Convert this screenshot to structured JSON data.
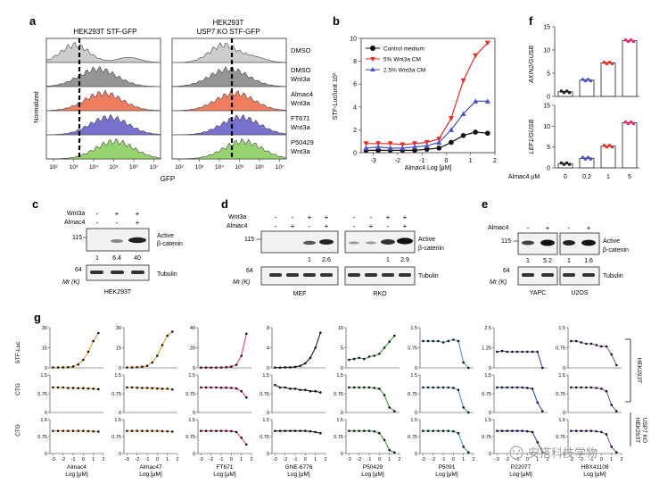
{
  "panel_letters": {
    "a": "a",
    "b": "b",
    "c": "c",
    "d": "d",
    "e": "e",
    "f": "f",
    "g": "g"
  },
  "panel_a": {
    "left_title": "HEK293T STF-GFP",
    "right_title_1": "HEK293T",
    "right_title_2": "USP7 KO STF-GFP",
    "ylabel": "Normalized",
    "xlabel": "GFP",
    "xticks": [
      "10²",
      "10³",
      "10⁴",
      "10⁵",
      "10⁶",
      "10⁷"
    ],
    "rows": [
      {
        "l1": "DMSO",
        "l2": "",
        "color": "#c8c8c8"
      },
      {
        "l1": "DMSO",
        "l2": "Wnt3a",
        "color": "#8a8a8a"
      },
      {
        "l1": "Almac4",
        "l2": "Wnt3a",
        "color": "#f07050"
      },
      {
        "l1": "FT671",
        "l2": "Wnt3a",
        "color": "#6a62c8"
      },
      {
        "l1": "P50429",
        "l2": "Wnt3a",
        "color": "#8cd060"
      }
    ]
  },
  "panel_b": {
    "ylabel": "STF-Luc/unit 10³",
    "xlabel": "Almac4 Log [μM]",
    "legend": [
      "Control medium",
      "5% Wnt3a CM",
      "2.5% Wnt3a CM"
    ],
    "colors": [
      "#111111",
      "#e0302a",
      "#4a52c0"
    ]
  },
  "panel_c": {
    "row_labels": [
      "Wnt3a",
      "Almac4"
    ],
    "signs": [
      [
        "-",
        "+",
        "+"
      ],
      [
        "-",
        "-",
        "+"
      ]
    ],
    "mw_top": "115",
    "mw_bottom": "64",
    "mr": "Mr (K)",
    "quant": [
      "1",
      "6.4",
      "40"
    ],
    "band1": "Active",
    "band2": "β-catenin",
    "band3": "Tubulin",
    "cell_line": "HEK293T"
  },
  "panel_d": {
    "row_labels": [
      "Wnt3a",
      "Almac4"
    ],
    "signs_mef": [
      [
        "-",
        "-",
        "+",
        "+"
      ],
      [
        "-",
        "+",
        "-",
        "+"
      ]
    ],
    "signs_rko": [
      [
        "-",
        "-",
        "+",
        "+"
      ],
      [
        "-",
        "+",
        "-",
        "+"
      ]
    ],
    "mw_top": "115",
    "mw_bottom": "64",
    "mr": "Mr (K)",
    "quant_mef": [
      "1",
      "2.6"
    ],
    "quant_rko": [
      "1",
      "2.9"
    ],
    "band1": "Active",
    "band2": "β-catenin",
    "band3": "Tubulin",
    "cell_lines": [
      "MEF",
      "RKO"
    ]
  },
  "panel_e": {
    "row_label": "Almac4",
    "signs": [
      "-",
      "+",
      "-",
      "+"
    ],
    "mw_top": "115",
    "mw_bottom": "64",
    "mr": "Mr (K)",
    "quant": [
      "1",
      "5.2",
      "1",
      "1.6"
    ],
    "band1": "Active",
    "band2": "β-catenin",
    "band3": "Tubulin",
    "cell_lines": [
      "YAPC",
      "U2OS"
    ]
  },
  "panel_f": {
    "ylabel_top": "AXIN2/GUSB",
    "ylabel_bottom": "LEF1/GUSB",
    "xrow_label": "Almac4 μM",
    "categories": [
      "0",
      "0.2",
      "1",
      "5"
    ]
  },
  "panel_g": {
    "row_ylabels": [
      "STF-Luc",
      "CTG",
      "CTG"
    ],
    "side_label_1": "HEK293T",
    "side_label_2": "HEK293T",
    "side_label_3": "USP7 KO",
    "log_label": "Log [μM]",
    "xticks": [
      "-3",
      "-2",
      "-1",
      "0",
      "1",
      "2"
    ],
    "compounds": [
      "Almac4",
      "Almac47",
      "FT671",
      "GNE-6776",
      "P50429",
      "P5091",
      "P22077",
      "HBX41108"
    ]
  },
  "watermark": "安搭科技学物",
  "chart_data": [
    {
      "type": "line",
      "title": "",
      "xlabel": "Almac4 Log [μM]",
      "ylabel": "STF-Luc/unit 10³",
      "xlim": [
        -3.5,
        2
      ],
      "ylim": [
        0,
        10
      ],
      "x": [
        -3.3,
        -2.8,
        -2.3,
        -1.8,
        -1.3,
        -0.8,
        -0.3,
        0.2,
        0.7,
        1.2,
        1.7
      ],
      "series": [
        {
          "name": "Control medium",
          "values": [
            0.2,
            0.2,
            0.2,
            0.2,
            0.2,
            0.3,
            0.4,
            0.9,
            1.5,
            1.8,
            1.7
          ]
        },
        {
          "name": "5% Wnt3a CM",
          "values": [
            0.8,
            0.8,
            0.8,
            0.7,
            0.8,
            0.9,
            1.2,
            3.0,
            6.3,
            8.5,
            9.6
          ]
        },
        {
          "name": "2.5% Wnt3a CM",
          "values": [
            0.4,
            0.5,
            0.4,
            0.4,
            0.5,
            0.6,
            0.9,
            2.0,
            3.4,
            4.5,
            4.5
          ]
        }
      ],
      "xticks": [
        "-3",
        "-2",
        "-1",
        "0",
        "1",
        "2"
      ],
      "yticks": [
        "0",
        "2",
        "4",
        "6",
        "8",
        "10"
      ]
    },
    {
      "type": "bar",
      "title": "",
      "ylabel": "AXIN2/GUSB",
      "categories": [
        "0",
        "0.2",
        "1",
        "5"
      ],
      "values": [
        1.0,
        3.5,
        7.2,
        12.0
      ],
      "ylim": [
        0,
        15
      ],
      "yticks": [
        "0",
        "5",
        "10",
        "15"
      ]
    },
    {
      "type": "bar",
      "title": "",
      "ylabel": "LEF1/GUSB",
      "xlabel": "Almac4 μM",
      "categories": [
        "0",
        "0.2",
        "1",
        "5"
      ],
      "values": [
        1.0,
        2.3,
        5.2,
        10.8
      ],
      "ylim": [
        0,
        15
      ],
      "yticks": [
        "0",
        "5",
        "10",
        "15"
      ]
    },
    {
      "type": "scatter",
      "title": "",
      "xlabel": "Log [μM]",
      "x": [
        -3,
        -2.5,
        -2,
        -1.5,
        -1,
        -0.5,
        0,
        0.5,
        1,
        1.5
      ],
      "panels": [
        {
          "compound": "Almac4",
          "assay": "STF-Luc",
          "ylim": [
            0,
            30
          ],
          "values": [
            0.3,
            0.3,
            0.4,
            0.5,
            1,
            2.5,
            6,
            12,
            20,
            26
          ]
        },
        {
          "compound": "Almac47",
          "assay": "STF-Luc",
          "ylim": [
            0,
            30
          ],
          "values": [
            0.3,
            0.3,
            0.5,
            0.8,
            1.5,
            4,
            9,
            17,
            24,
            27
          ]
        },
        {
          "compound": "FT671",
          "assay": "STF-Luc",
          "ylim": [
            0,
            40
          ],
          "values": [
            0.3,
            0.3,
            0.3,
            0.3,
            0.4,
            0.6,
            1.2,
            3,
            12,
            34
          ]
        },
        {
          "compound": "GNE-6776",
          "assay": "STF-Luc",
          "ylim": [
            0,
            8
          ],
          "values": [
            0.05,
            0.05,
            0.1,
            0.1,
            0.2,
            0.4,
            0.9,
            2,
            4,
            7
          ]
        },
        {
          "compound": "P50429",
          "assay": "STF-Luc",
          "ylim": [
            0,
            10
          ],
          "values": [
            2,
            2.2,
            2.5,
            2.2,
            2.8,
            3,
            3.5,
            5,
            6.5,
            8
          ]
        },
        {
          "compound": "P5091",
          "assay": "STF-Luc",
          "ylim": [
            0,
            1.5
          ],
          "values": [
            1,
            1,
            1,
            1,
            0.95,
            1,
            1.05,
            1,
            0.2,
            0
          ]
        },
        {
          "compound": "P22077",
          "assay": "STF-Luc",
          "ylim": [
            0,
            2.5
          ],
          "values": [
            1,
            1.05,
            1,
            1,
            1,
            1,
            1,
            1,
            1,
            0
          ]
        },
        {
          "compound": "HBX41108",
          "assay": "STF-Luc",
          "ylim": [
            0,
            1.5
          ],
          "values": [
            1,
            1,
            0.95,
            0.9,
            0.9,
            0.85,
            0.8,
            0.8,
            0.5,
            0.1
          ]
        },
        {
          "compound": "Almac4",
          "assay": "CTG HEK293T",
          "ylim": [
            0,
            1.5
          ],
          "values": [
            1,
            1,
            1,
            0.98,
            0.98,
            0.97,
            0.97,
            0.96,
            0.95,
            0.93
          ]
        },
        {
          "compound": "Almac47",
          "assay": "CTG HEK293T",
          "ylim": [
            0,
            1.5
          ],
          "values": [
            1,
            1,
            0.99,
            0.98,
            0.98,
            0.97,
            0.96,
            0.95,
            0.95,
            0.92
          ]
        },
        {
          "compound": "FT671",
          "assay": "CTG HEK293T",
          "ylim": [
            0,
            1.5
          ],
          "values": [
            1,
            1,
            1,
            1,
            0.99,
            0.99,
            0.98,
            0.96,
            0.85,
            0.6
          ]
        },
        {
          "compound": "GNE-6776",
          "assay": "CTG HEK293T",
          "ylim": [
            0,
            1.5
          ],
          "values": [
            1.1,
            1,
            1,
            0.95,
            0.95,
            0.9,
            0.9,
            0.85,
            0.85,
            0.8
          ]
        },
        {
          "compound": "P50429",
          "assay": "CTG HEK293T",
          "ylim": [
            0,
            1.5
          ],
          "values": [
            1,
            1,
            1,
            1,
            1,
            0.98,
            0.95,
            0.7,
            0.2,
            0.05
          ]
        },
        {
          "compound": "P5091",
          "assay": "CTG HEK293T",
          "ylim": [
            0,
            1.5
          ],
          "values": [
            1,
            1,
            1,
            1,
            1,
            1,
            0.98,
            0.9,
            0.2,
            0
          ]
        },
        {
          "compound": "P22077",
          "assay": "CTG HEK293T",
          "ylim": [
            0,
            1.5
          ],
          "values": [
            1,
            1,
            1,
            1,
            1,
            1,
            0.98,
            0.95,
            0.4,
            0.05
          ]
        },
        {
          "compound": "HBX41108",
          "assay": "CTG HEK293T",
          "ylim": [
            0,
            1.5
          ],
          "values": [
            1,
            1,
            1,
            1,
            1,
            0.98,
            0.95,
            0.85,
            0.3,
            0.05
          ]
        },
        {
          "compound": "Almac4",
          "assay": "CTG HEK293T USP7 KO",
          "ylim": [
            0,
            1.5
          ],
          "values": [
            1,
            1,
            1,
            1,
            1,
            1,
            1,
            0.99,
            0.98,
            0.97
          ]
        },
        {
          "compound": "Almac47",
          "assay": "CTG HEK293T USP7 KO",
          "ylim": [
            0,
            1.5
          ],
          "values": [
            1,
            1,
            1,
            1,
            1,
            1,
            1,
            0.99,
            0.98,
            0.97
          ]
        },
        {
          "compound": "FT671",
          "assay": "CTG HEK293T USP7 KO",
          "ylim": [
            0,
            1.5
          ],
          "values": [
            1,
            1,
            1,
            1,
            1,
            1,
            0.99,
            0.95,
            0.7,
            0.4
          ]
        },
        {
          "compound": "GNE-6776",
          "assay": "CTG HEK293T USP7 KO",
          "ylim": [
            0,
            1.5
          ],
          "values": [
            1,
            1,
            1,
            1,
            1,
            1,
            1,
            0.98,
            0.95,
            0.9
          ]
        },
        {
          "compound": "P50429",
          "assay": "CTG HEK293T USP7 KO",
          "ylim": [
            0,
            1.5
          ],
          "values": [
            1,
            1,
            1,
            1,
            1,
            0.98,
            0.9,
            0.6,
            0.15,
            0.05
          ]
        },
        {
          "compound": "P5091",
          "assay": "CTG HEK293T USP7 KO",
          "ylim": [
            0,
            1.5
          ],
          "values": [
            1,
            1,
            1,
            1,
            1,
            1,
            0.98,
            0.9,
            0.3,
            0.05
          ]
        },
        {
          "compound": "P22077",
          "assay": "CTG HEK293T USP7 KO",
          "ylim": [
            0,
            1.5
          ],
          "values": [
            1,
            1,
            1,
            1,
            1,
            1,
            0.98,
            0.95,
            0.5,
            0.05
          ]
        },
        {
          "compound": "HBX41108",
          "assay": "CTG HEK293T USP7 KO",
          "ylim": [
            0,
            1.5
          ],
          "values": [
            1,
            1,
            1,
            1,
            1,
            0.98,
            0.95,
            0.85,
            0.3,
            0.05
          ]
        }
      ]
    }
  ]
}
